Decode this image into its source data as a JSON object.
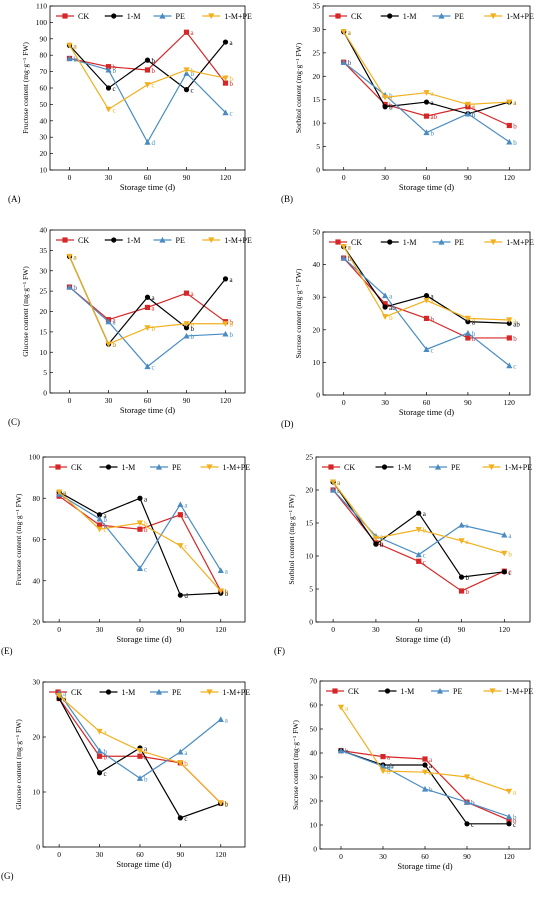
{
  "legend_names": [
    "CK",
    "1-M",
    "PE",
    "1-M+PE"
  ],
  "colors": {
    "CK": "#d62728",
    "1-M": "#000000",
    "PE": "#4a8cc2",
    "1-M+PE": "#f2b01e"
  },
  "chart_data": [
    {
      "panel": "(A)",
      "type": "line",
      "ylabel": "Fructose content (mg·g⁻¹ FW)",
      "xlabel": "Storage time (d)",
      "ylim": [
        10,
        110
      ],
      "yticks": [
        10,
        20,
        30,
        40,
        50,
        60,
        70,
        80,
        90,
        100,
        110
      ],
      "x": [
        0,
        30,
        60,
        90,
        120
      ],
      "legend_placement": "top",
      "series": [
        {
          "name": "CK",
          "values": [
            78,
            73,
            71,
            94,
            63
          ],
          "labels": [
            "b",
            "b",
            "b",
            "a",
            "b"
          ]
        },
        {
          "name": "1-M",
          "values": [
            86,
            60,
            77,
            59,
            88
          ],
          "labels": [
            "a",
            "c",
            "b",
            "c",
            "a"
          ]
        },
        {
          "name": "PE",
          "values": [
            78,
            71,
            27,
            69,
            45
          ],
          "labels": [
            "b",
            "b",
            "d",
            "b",
            "c"
          ]
        },
        {
          "name": "1-M+PE",
          "values": [
            86,
            47,
            62,
            71,
            66
          ],
          "labels": [
            "a",
            "c",
            "c",
            "b",
            "b"
          ]
        }
      ]
    },
    {
      "panel": "(B)",
      "type": "line",
      "ylabel": "Sorbitol content (mg·g⁻¹ FW)",
      "xlabel": "Storage time (d)",
      "ylim": [
        0,
        35
      ],
      "yticks": [
        0,
        5,
        10,
        15,
        20,
        25,
        30,
        35
      ],
      "x": [
        0,
        30,
        60,
        90,
        120
      ],
      "legend_placement": "top",
      "series": [
        {
          "name": "CK",
          "values": [
            23,
            14,
            11.5,
            13.5,
            9.5
          ],
          "labels": [
            "b",
            "b",
            "ab",
            "a",
            "b"
          ]
        },
        {
          "name": "1-M",
          "values": [
            29.5,
            13.5,
            14.5,
            12,
            14.5
          ],
          "labels": [
            "a",
            "b",
            "a",
            "b",
            "a"
          ]
        },
        {
          "name": "PE",
          "values": [
            23,
            16,
            8,
            12,
            6
          ],
          "labels": [
            "b",
            "b",
            "b",
            "b",
            "b"
          ]
        },
        {
          "name": "1-M+PE",
          "values": [
            29.5,
            15.5,
            16.5,
            14,
            14.5
          ],
          "labels": [
            "a",
            "a",
            "a",
            "a",
            "a"
          ]
        }
      ]
    },
    {
      "panel": "(C)",
      "type": "line",
      "ylabel": "Glucose content (mg·g⁻¹ FW)",
      "xlabel": "Storage time (d)",
      "ylim": [
        0,
        40
      ],
      "yticks": [
        0,
        5,
        10,
        15,
        20,
        25,
        30,
        35,
        40
      ],
      "x": [
        0,
        30,
        60,
        90,
        120
      ],
      "legend_placement": "top",
      "series": [
        {
          "name": "CK",
          "values": [
            26,
            18,
            21,
            24.5,
            17.5
          ],
          "labels": [
            "b",
            "a",
            "a",
            "a",
            "b"
          ]
        },
        {
          "name": "1-M",
          "values": [
            33.5,
            12,
            23.5,
            16,
            28
          ],
          "labels": [
            "a",
            "b",
            "a",
            "b",
            "a"
          ]
        },
        {
          "name": "PE",
          "values": [
            26,
            17.5,
            6.5,
            14,
            14.5
          ],
          "labels": [
            "b",
            "a",
            "c",
            "b",
            "b"
          ]
        },
        {
          "name": "1-M+PE",
          "values": [
            33.5,
            12,
            16,
            17,
            17
          ],
          "labels": [
            "a",
            "b",
            "b",
            "b",
            "b"
          ]
        }
      ]
    },
    {
      "panel": "(D)",
      "type": "line",
      "ylabel": "Sucrose content (mg·g⁻¹ FW)",
      "xlabel": "Storage time (d)",
      "ylim": [
        0,
        50
      ],
      "yticks": [
        0,
        10,
        20,
        30,
        40,
        50
      ],
      "x": [
        0,
        30,
        60,
        90,
        120
      ],
      "legend_placement": "top",
      "series": [
        {
          "name": "CK",
          "values": [
            42,
            28,
            23.5,
            17.5,
            17.5
          ],
          "labels": [
            "b",
            "a",
            "b",
            "b",
            "b"
          ]
        },
        {
          "name": "1-M",
          "values": [
            45.5,
            27,
            30.5,
            22.5,
            22
          ],
          "labels": [
            "a",
            "ab",
            "a",
            "a",
            "ab"
          ]
        },
        {
          "name": "PE",
          "values": [
            42,
            30.5,
            14,
            19,
            9
          ],
          "labels": [
            "b",
            "a",
            "c",
            "b",
            "c"
          ]
        },
        {
          "name": "1-M+PE",
          "values": [
            45.5,
            24,
            29,
            23.5,
            23
          ],
          "labels": [
            "a",
            "b",
            "a",
            "a",
            "a"
          ]
        }
      ]
    },
    {
      "panel": "(E)",
      "type": "line",
      "ylabel": "Fructose content (mg·g⁻¹ FW)",
      "xlabel": "Storage time (d)",
      "ylim": [
        20,
        100
      ],
      "yticks": [
        20,
        40,
        60,
        80,
        100
      ],
      "x": [
        0,
        30,
        60,
        90,
        120
      ],
      "legend_placement": "top",
      "series": [
        {
          "name": "CK",
          "values": [
            81,
            67,
            65,
            72,
            35
          ],
          "labels": [
            "b",
            "b",
            "b",
            "b",
            "b"
          ]
        },
        {
          "name": "1-M",
          "values": [
            83,
            72,
            80,
            33,
            34
          ],
          "labels": [
            "a",
            "a",
            "a",
            "d",
            "b"
          ]
        },
        {
          "name": "PE",
          "values": [
            82,
            70,
            46,
            77,
            45
          ],
          "labels": [
            "b",
            "b",
            "c",
            "a",
            "a"
          ]
        },
        {
          "name": "1-M+PE",
          "values": [
            83,
            65,
            68,
            57,
            35
          ],
          "labels": [
            "a",
            "c",
            "b",
            "c",
            "b"
          ]
        }
      ]
    },
    {
      "panel": "(F)",
      "type": "line",
      "ylabel": "Sorbitol content (mg·g⁻¹ FW)",
      "xlabel": "Storage time (d)",
      "ylim": [
        0,
        25
      ],
      "yticks": [
        0,
        5,
        10,
        15,
        20,
        25
      ],
      "x": [
        0,
        30,
        60,
        90,
        120
      ],
      "legend_placement": "top",
      "series": [
        {
          "name": "CK",
          "values": [
            20,
            12,
            9.2,
            4.7,
            7.7
          ],
          "labels": [
            "b",
            "b",
            "c",
            "b",
            "c"
          ]
        },
        {
          "name": "1-M",
          "values": [
            21.2,
            11.8,
            16.5,
            6.8,
            7.6
          ],
          "labels": [
            "a",
            "b",
            "a",
            "b",
            "c"
          ]
        },
        {
          "name": "PE",
          "values": [
            20,
            13,
            10.2,
            14.7,
            13.2
          ],
          "labels": [
            "b",
            "a",
            "c",
            "a",
            "a"
          ]
        },
        {
          "name": "1-M+PE",
          "values": [
            21.2,
            12.7,
            14,
            12.3,
            10.4
          ],
          "labels": [
            "a",
            "a",
            "b",
            "a",
            "b"
          ]
        }
      ]
    },
    {
      "panel": "(G)",
      "type": "line",
      "ylabel": "Glucose content (mg·g⁻¹ FW)",
      "xlabel": "Storage time (d)",
      "ylim": [
        0,
        30
      ],
      "yticks": [
        0,
        10,
        20,
        30
      ],
      "x": [
        0,
        30,
        60,
        90,
        120
      ],
      "legend_placement": "top",
      "series": [
        {
          "name": "CK",
          "values": [
            27,
            16.5,
            16.5,
            15.3,
            8
          ],
          "labels": [
            "a",
            "b",
            "a",
            "b",
            "b"
          ]
        },
        {
          "name": "1-M",
          "values": [
            27,
            13.5,
            18,
            5.3,
            7.9
          ],
          "labels": [
            "a",
            "c",
            "a",
            "c",
            "b"
          ]
        },
        {
          "name": "PE",
          "values": [
            28,
            17.5,
            12.5,
            17.3,
            23.2
          ],
          "labels": [
            "a",
            "b",
            "b",
            "a",
            "a"
          ]
        },
        {
          "name": "1-M+PE",
          "values": [
            27.5,
            21,
            17.5,
            15.3,
            8
          ],
          "labels": [
            "a",
            "a",
            "a",
            "b",
            "b"
          ]
        }
      ]
    },
    {
      "panel": "(H)",
      "type": "line",
      "ylabel": "Sucrose content (mg·g⁻¹ FW)",
      "xlabel": "Storage time (d)",
      "ylim": [
        0,
        70
      ],
      "yticks": [
        0,
        10,
        20,
        30,
        40,
        50,
        60,
        70
      ],
      "x": [
        0,
        30,
        60,
        90,
        120
      ],
      "legend_placement": "top",
      "series": [
        {
          "name": "CK",
          "values": [
            41,
            38.5,
            37.5,
            19.5,
            12
          ],
          "labels": [
            "b",
            "a",
            "a",
            "b",
            "b"
          ]
        },
        {
          "name": "1-M",
          "values": [
            41,
            35,
            35,
            10.5,
            10.5
          ],
          "labels": [
            "b",
            "ab",
            "a",
            "c",
            "c"
          ]
        },
        {
          "name": "PE",
          "values": [
            41,
            34.5,
            25,
            19.5,
            13.5
          ],
          "labels": [
            "b",
            "ab",
            "b",
            "b",
            "b"
          ]
        },
        {
          "name": "1-M+PE",
          "values": [
            59,
            32.5,
            32,
            30,
            24
          ],
          "labels": [
            "a",
            "b",
            "a",
            "a",
            "a"
          ]
        }
      ]
    }
  ]
}
